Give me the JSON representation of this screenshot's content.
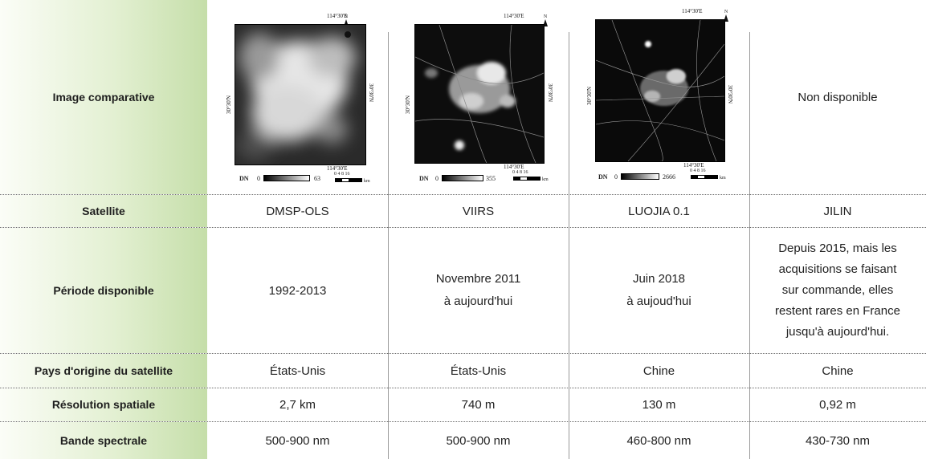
{
  "table": {
    "rows": [
      {
        "header": "Image comparative",
        "cells": [
          {
            "image": {
              "coord_top": "114°30'E",
              "coord_side": "30°30'N",
              "coord_bottom": "114°30'E",
              "north": "N",
              "dn_label": "DN",
              "dn_min": "0",
              "dn_max": "63",
              "scale_ticks": "0  4  8      16",
              "scale_unit": "km"
            }
          },
          {
            "image": {
              "coord_top": "114°30'E",
              "coord_side": "30°30'N",
              "coord_bottom": "114°30'E",
              "north": "N",
              "dn_label": "DN",
              "dn_min": "0",
              "dn_max": "355",
              "scale_ticks": "0  4  8      16",
              "scale_unit": "km"
            }
          },
          {
            "image": {
              "coord_top": "114°30'E",
              "coord_side": "30°30'N",
              "coord_bottom": "114°30'E",
              "north": "N",
              "dn_label": "DN",
              "dn_min": "0",
              "dn_max": "2666",
              "scale_ticks": "0  4  8      16",
              "scale_unit": "km"
            }
          },
          {
            "text": "Non disponible"
          }
        ]
      },
      {
        "header": "Satellite",
        "cells": [
          {
            "text": "DMSP-OLS"
          },
          {
            "text": "VIIRS"
          },
          {
            "text": "LUOJIA 0.1"
          },
          {
            "text": "JILIN"
          }
        ]
      },
      {
        "header": "Période disponible",
        "cells": [
          {
            "lines": [
              "1992-2013"
            ]
          },
          {
            "lines": [
              "Novembre 2011",
              "à aujourd'hui"
            ]
          },
          {
            "lines": [
              "Juin 2018",
              "à aujoud'hui"
            ]
          },
          {
            "lines": [
              "Depuis 2015, mais les",
              "acquisitions se faisant",
              "sur commande, elles",
              "restent rares en France",
              "jusqu'à aujourd'hui."
            ]
          }
        ]
      },
      {
        "header": "Pays d'origine du satellite",
        "cells": [
          {
            "text": "États-Unis"
          },
          {
            "text": "États-Unis"
          },
          {
            "text": "Chine"
          },
          {
            "text": "Chine"
          }
        ]
      },
      {
        "header": "Résolution spatiale",
        "cells": [
          {
            "text": "2,7 km"
          },
          {
            "text": "740 m"
          },
          {
            "text": "130 m"
          },
          {
            "text": "0,92 m"
          }
        ]
      },
      {
        "header": "Bande spectrale",
        "cells": [
          {
            "text": "500-900 nm"
          },
          {
            "text": "500-900 nm"
          },
          {
            "text": "460-800 nm"
          },
          {
            "text": "430-730 nm"
          }
        ]
      }
    ]
  }
}
